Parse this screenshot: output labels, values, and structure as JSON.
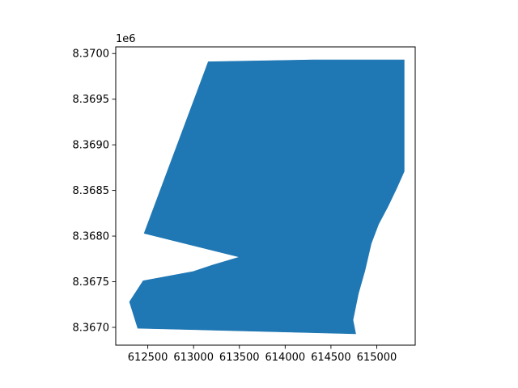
{
  "chart_data": {
    "type": "area",
    "title": "",
    "xlabel": "",
    "ylabel": "",
    "y_offset_text": "1e6",
    "xlim": [
      612150,
      615420
    ],
    "ylim": [
      8.366805,
      8.370073
    ],
    "x_ticks": [
      {
        "value": 612500,
        "label": "612500"
      },
      {
        "value": 613000,
        "label": "613000"
      },
      {
        "value": 613500,
        "label": "613500"
      },
      {
        "value": 614000,
        "label": "614000"
      },
      {
        "value": 614500,
        "label": "614500"
      },
      {
        "value": 615000,
        "label": "615000"
      }
    ],
    "y_ticks": [
      {
        "value": 8.367,
        "label": "8.3670"
      },
      {
        "value": 8.3675,
        "label": "8.3675"
      },
      {
        "value": 8.368,
        "label": "8.3680"
      },
      {
        "value": 8.3685,
        "label": "8.3685"
      },
      {
        "value": 8.369,
        "label": "8.3690"
      },
      {
        "value": 8.3695,
        "label": "8.3695"
      },
      {
        "value": 8.37,
        "label": "8.3700"
      }
    ],
    "fill_color": "#1f77b4",
    "grid": false,
    "polygon": [
      [
        613160,
        8.36991
      ],
      [
        614300,
        8.36993
      ],
      [
        615300,
        8.36993
      ],
      [
        615300,
        8.36871
      ],
      [
        615220,
        8.36853
      ],
      [
        615120,
        8.36832
      ],
      [
        615020,
        8.36813
      ],
      [
        614940,
        8.36792
      ],
      [
        614870,
        8.36762
      ],
      [
        614800,
        8.36737
      ],
      [
        614740,
        8.36708
      ],
      [
        614770,
        8.36693
      ],
      [
        612390,
        8.36699
      ],
      [
        612300,
        8.36728
      ],
      [
        612450,
        8.36751
      ],
      [
        612990,
        8.36761
      ],
      [
        613200,
        8.36768
      ],
      [
        613500,
        8.36777
      ],
      [
        612460,
        8.36803
      ]
    ]
  }
}
